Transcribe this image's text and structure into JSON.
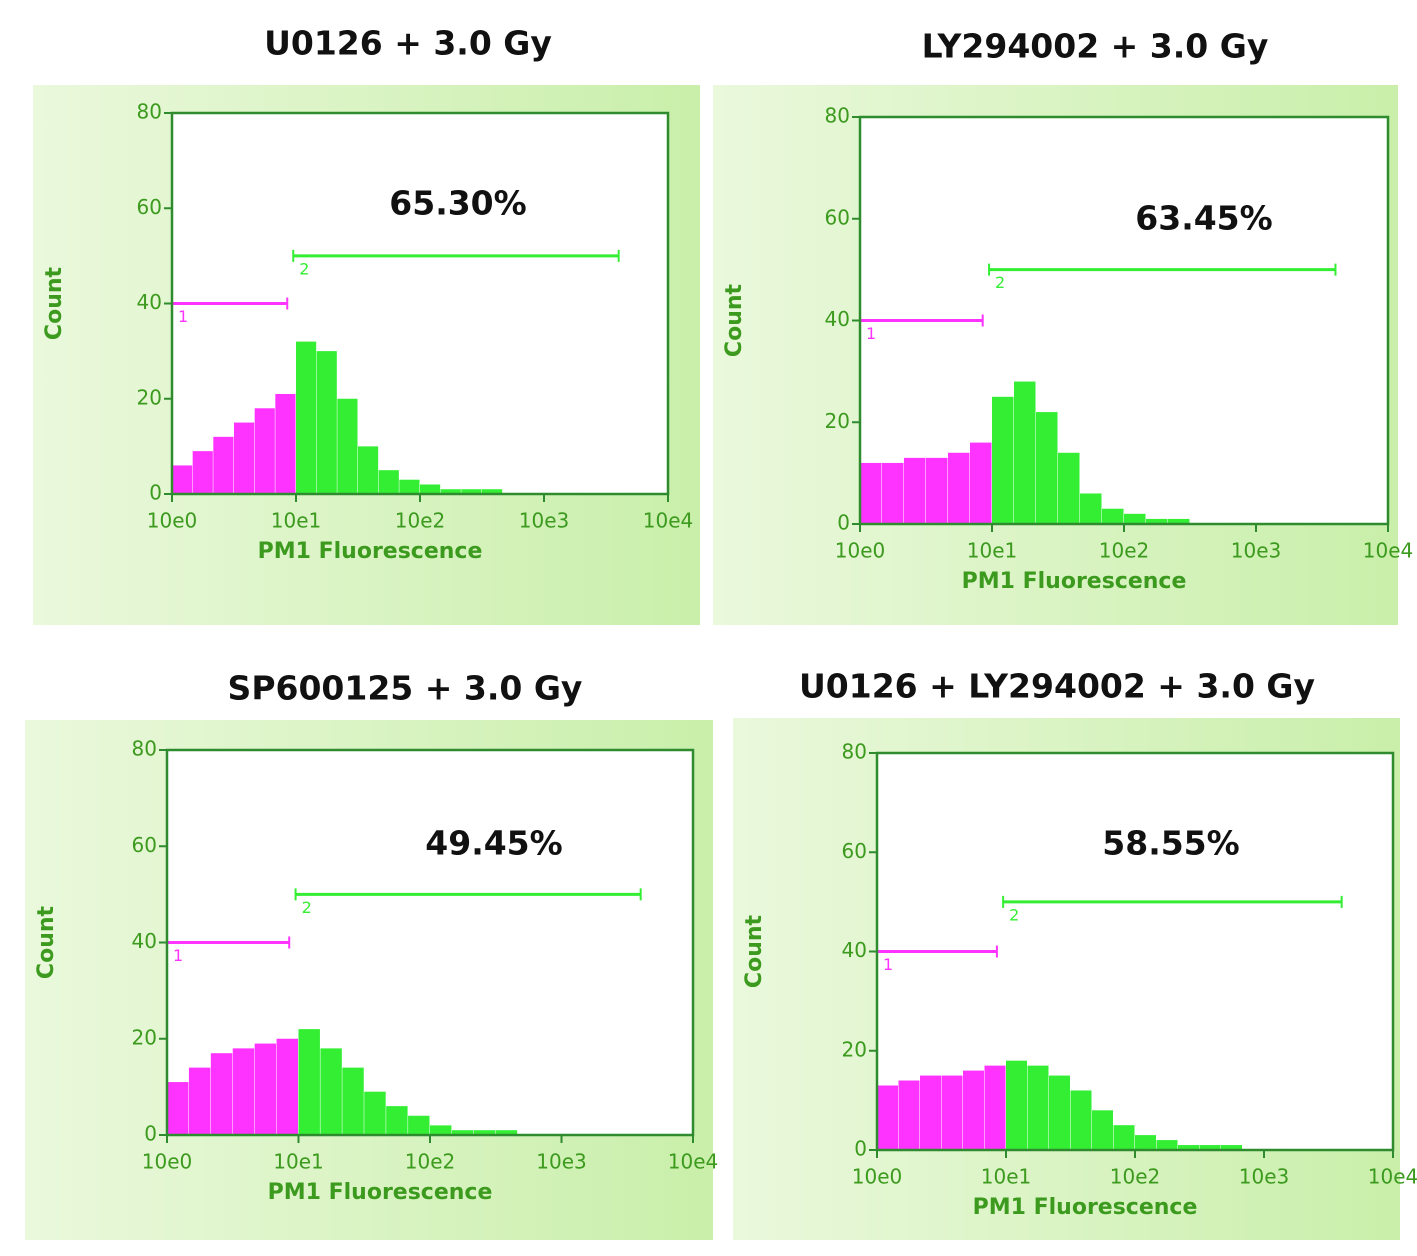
{
  "chart_data": [
    {
      "type": "histogram",
      "title": "U0126 + 3.0 Gy",
      "xlabel": "PM1 Fluorescence",
      "ylabel": "Count",
      "annotation": "65.30%",
      "log_x": true,
      "xlim": [
        1,
        10000
      ],
      "xticks": [
        {
          "value": 1,
          "label": "10e0"
        },
        {
          "value": 10,
          "label": "10e1"
        },
        {
          "value": 100,
          "label": "10e2"
        },
        {
          "value": 1000,
          "label": "10e3"
        },
        {
          "value": 10000,
          "label": "10e4"
        }
      ],
      "ylim": [
        0,
        80
      ],
      "yticks": [
        0,
        20,
        40,
        60,
        80
      ],
      "bins": [
        1,
        1.468,
        2.154,
        3.162,
        4.642,
        6.813,
        10,
        14.68,
        21.54,
        31.62,
        46.42,
        68.13,
        100,
        146.8,
        215.4,
        316.2,
        464.2,
        681.3,
        1000,
        1468,
        2154,
        3162,
        4642,
        6813,
        10000
      ],
      "counts": [
        6,
        9,
        12,
        15,
        18,
        21,
        32,
        30,
        20,
        10,
        5,
        3,
        2,
        1,
        1,
        1,
        0,
        0,
        0,
        0,
        0,
        0,
        0,
        0
      ],
      "gates": [
        {
          "label": "1",
          "range": [
            1,
            8.5
          ],
          "y": 40,
          "color": "#ff33ff"
        },
        {
          "label": "2",
          "range": [
            9.5,
            4000
          ],
          "y": 50,
          "color": "#33ee33"
        }
      ]
    },
    {
      "type": "histogram",
      "title": "LY294002 + 3.0 Gy",
      "xlabel": "PM1 Fluorescence",
      "ylabel": "Count",
      "annotation": "63.45%",
      "log_x": true,
      "xlim": [
        1,
        10000
      ],
      "xticks": [
        {
          "value": 1,
          "label": "10e0"
        },
        {
          "value": 10,
          "label": "10e1"
        },
        {
          "value": 100,
          "label": "10e2"
        },
        {
          "value": 1000,
          "label": "10e3"
        },
        {
          "value": 10000,
          "label": "10e4"
        }
      ],
      "ylim": [
        0,
        80
      ],
      "yticks": [
        0,
        20,
        40,
        60,
        80
      ],
      "bins": [
        1,
        1.468,
        2.154,
        3.162,
        4.642,
        6.813,
        10,
        14.68,
        21.54,
        31.62,
        46.42,
        68.13,
        100,
        146.8,
        215.4,
        316.2,
        464.2,
        681.3,
        1000,
        1468,
        2154,
        3162,
        4642,
        6813,
        10000
      ],
      "counts": [
        12,
        12,
        13,
        13,
        14,
        16,
        25,
        28,
        22,
        14,
        6,
        3,
        2,
        1,
        1,
        0,
        0,
        0,
        0,
        0,
        0,
        0,
        0,
        0
      ],
      "gates": [
        {
          "label": "1",
          "range": [
            1,
            8.5
          ],
          "y": 40,
          "color": "#ff33ff"
        },
        {
          "label": "2",
          "range": [
            9.5,
            4000
          ],
          "y": 50,
          "color": "#33ee33"
        }
      ]
    },
    {
      "type": "histogram",
      "title": "SP600125 + 3.0 Gy",
      "xlabel": "PM1 Fluorescence",
      "ylabel": "Count",
      "annotation": "49.45%",
      "log_x": true,
      "xlim": [
        1,
        10000
      ],
      "xticks": [
        {
          "value": 1,
          "label": "10e0"
        },
        {
          "value": 10,
          "label": "10e1"
        },
        {
          "value": 100,
          "label": "10e2"
        },
        {
          "value": 1000,
          "label": "10e3"
        },
        {
          "value": 10000,
          "label": "10e4"
        }
      ],
      "ylim": [
        0,
        80
      ],
      "yticks": [
        0,
        20,
        40,
        60,
        80
      ],
      "bins": [
        1,
        1.468,
        2.154,
        3.162,
        4.642,
        6.813,
        10,
        14.68,
        21.54,
        31.62,
        46.42,
        68.13,
        100,
        146.8,
        215.4,
        316.2,
        464.2,
        681.3,
        1000,
        1468,
        2154,
        3162,
        4642,
        6813,
        10000
      ],
      "counts": [
        11,
        14,
        17,
        18,
        19,
        20,
        22,
        18,
        14,
        9,
        6,
        4,
        2,
        1,
        1,
        1,
        0,
        0,
        0,
        0,
        0,
        0,
        0,
        0
      ],
      "gates": [
        {
          "label": "1",
          "range": [
            1,
            8.5
          ],
          "y": 40,
          "color": "#ff33ff"
        },
        {
          "label": "2",
          "range": [
            9.5,
            4000
          ],
          "y": 50,
          "color": "#33ee33"
        }
      ]
    },
    {
      "type": "histogram",
      "title": "U0126 + LY294002 + 3.0 Gy",
      "xlabel": "PM1 Fluorescence",
      "ylabel": "Count",
      "annotation": "58.55%",
      "log_x": true,
      "xlim": [
        1,
        10000
      ],
      "xticks": [
        {
          "value": 1,
          "label": "10e0"
        },
        {
          "value": 10,
          "label": "10e1"
        },
        {
          "value": 100,
          "label": "10e2"
        },
        {
          "value": 1000,
          "label": "10e3"
        },
        {
          "value": 10000,
          "label": "10e4"
        }
      ],
      "ylim": [
        0,
        80
      ],
      "yticks": [
        0,
        20,
        40,
        60,
        80
      ],
      "bins": [
        1,
        1.468,
        2.154,
        3.162,
        4.642,
        6.813,
        10,
        14.68,
        21.54,
        31.62,
        46.42,
        68.13,
        100,
        146.8,
        215.4,
        316.2,
        464.2,
        681.3,
        1000,
        1468,
        2154,
        3162,
        4642,
        6813,
        10000
      ],
      "counts": [
        13,
        14,
        15,
        15,
        16,
        17,
        18,
        17,
        15,
        12,
        8,
        5,
        3,
        2,
        1,
        1,
        1,
        0,
        0,
        0,
        0,
        0,
        0,
        0
      ],
      "gates": [
        {
          "label": "1",
          "range": [
            1,
            8.5
          ],
          "y": 40,
          "color": "#ff33ff"
        },
        {
          "label": "2",
          "range": [
            9.5,
            4000
          ],
          "y": 50,
          "color": "#33ee33"
        }
      ]
    }
  ]
}
